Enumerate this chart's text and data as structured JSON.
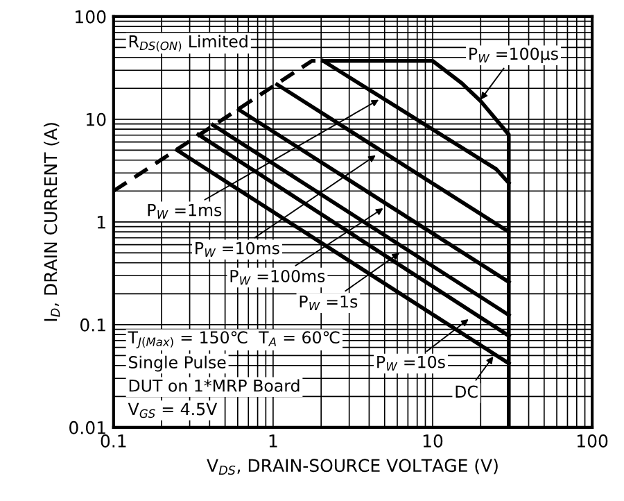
{
  "chart_data": {
    "type": "line",
    "xlabel": "V$_{DS}$, DRAIN-SOURCE VOLTAGE (V)",
    "ylabel": "I$_{D}$, DRAIN CURRENT (A)",
    "log": "xy",
    "grid": true,
    "xlim": [
      0.1,
      100
    ],
    "ylim": [
      0.01,
      100
    ],
    "xticks": [
      0.1,
      1,
      10,
      100
    ],
    "yticks": [
      0.01,
      0.1,
      1,
      10,
      100
    ],
    "series": [
      {
        "color": "#000000",
        "line_style": "dashed",
        "x": [
          0.1,
          1.75,
          2.06
        ],
        "values": [
          2,
          37,
          37
        ]
      },
      {
        "color": "#000000",
        "x": [
          2.06,
          10,
          15.2,
          20,
          30,
          30
        ],
        "values": [
          37,
          37,
          22.5,
          15,
          7.1,
          0.01
        ]
      },
      {
        "color": "#000000",
        "x": [
          2.06,
          25,
          30
        ],
        "values": [
          37,
          3.27,
          2.4
        ]
      },
      {
        "color": "#000000",
        "x": [
          1.06,
          30
        ],
        "values": [
          21.8,
          0.8
        ]
      },
      {
        "color": "#000000",
        "x": [
          0.61,
          30
        ],
        "values": [
          12.4,
          0.26
        ]
      },
      {
        "color": "#000000",
        "x": [
          0.42,
          30
        ],
        "values": [
          8.8,
          0.124
        ]
      },
      {
        "color": "#000000",
        "x": [
          0.34,
          30
        ],
        "values": [
          7.1,
          0.078
        ]
      },
      {
        "color": "#000000",
        "x": [
          0.25,
          30
        ],
        "values": [
          5.0,
          0.042
        ]
      }
    ],
    "annotations": [
      "R$_{DS(ON)}$ Limited",
      "T$_{J(Max)}$ = 150℃  T$_{A}$ = 60℃",
      "Single Pulse",
      "DUT on 1*MRP Board",
      "V$_{GS}$ = 4.5V",
      {
        "text": "P$_{W}$ =100μs",
        "x": 20,
        "y": 15.5
      },
      {
        "text": "P$_{W}$ =1ms",
        "x": 4.6,
        "y": 15.5
      },
      {
        "text": "P$_{W}$ =10ms",
        "x": 4.4,
        "y": 4.46
      },
      {
        "text": "P$_{W}$ =100ms",
        "x": 4.9,
        "y": 1.36
      },
      {
        "text": "P$_{W}$ =1s",
        "x": 6.2,
        "y": 0.5
      },
      {
        "text": "P$_{W}$ =10s",
        "x": 16.8,
        "y": 0.113
      },
      {
        "text": "DC",
        "x": 24,
        "y": 0.049
      }
    ]
  }
}
